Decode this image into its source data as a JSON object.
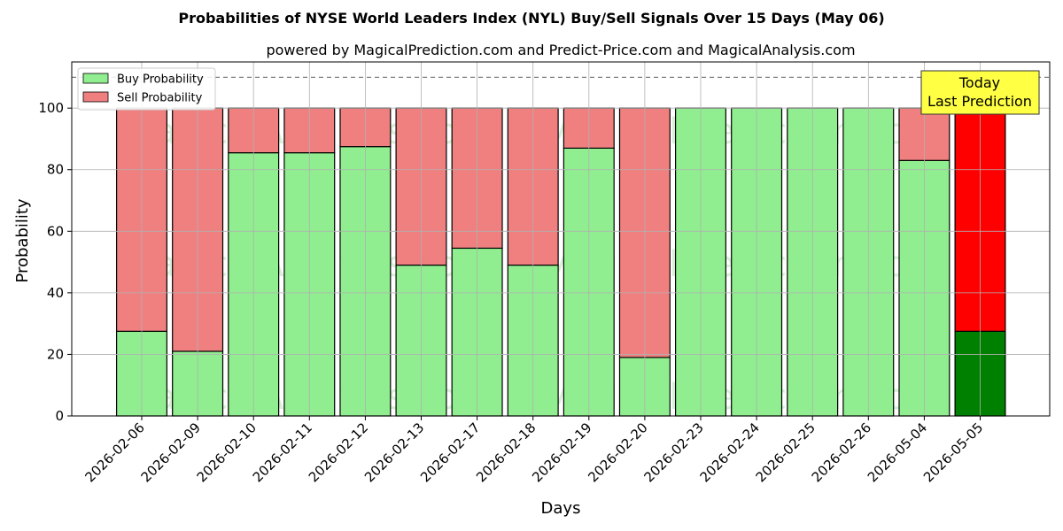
{
  "chart_data": {
    "type": "bar",
    "stacked": true,
    "title": "Probabilities of NYSE World Leaders Index (NYL) Buy/Sell Signals Over 15 Days (May 06)",
    "subtitle": "powered by MagicalPrediction.com and Predict-Price.com and MagicalAnalysis.com",
    "xlabel": "Days",
    "ylabel": "Probability",
    "ylim": [
      0,
      115
    ],
    "yticks": [
      0,
      20,
      40,
      60,
      80,
      100
    ],
    "reference_line": 110,
    "grid": true,
    "legend_position": "top-left",
    "categories": [
      "2026-02-06",
      "2026-02-09",
      "2026-02-10",
      "2026-02-11",
      "2026-02-12",
      "2026-02-13",
      "2026-02-17",
      "2026-02-18",
      "2026-02-19",
      "2026-02-20",
      "2026-02-23",
      "2026-02-24",
      "2026-02-25",
      "2026-02-26",
      "2026-05-04",
      "2026-05-05"
    ],
    "series": [
      {
        "name": "Buy Probability",
        "color": "#90ee90",
        "values": [
          27.5,
          21,
          85.5,
          85.5,
          87.5,
          49,
          54.5,
          49,
          87,
          19,
          100,
          100,
          100,
          100,
          83,
          27.5
        ]
      },
      {
        "name": "Sell Probability",
        "color": "#f08080",
        "values": [
          72.5,
          79,
          14.5,
          14.5,
          12.5,
          51,
          45.5,
          51,
          13,
          81,
          0,
          0,
          0,
          0,
          17,
          72.5
        ]
      }
    ],
    "highlight": {
      "index": 15,
      "buy_color": "#008000",
      "sell_color": "#ff0000"
    },
    "annotation": {
      "lines": [
        "Today",
        "Last Prediction"
      ],
      "bg_color": "#ffff44"
    },
    "watermarks": [
      "MagicalAnalysis.com",
      "MagicalPrediction.com"
    ]
  }
}
